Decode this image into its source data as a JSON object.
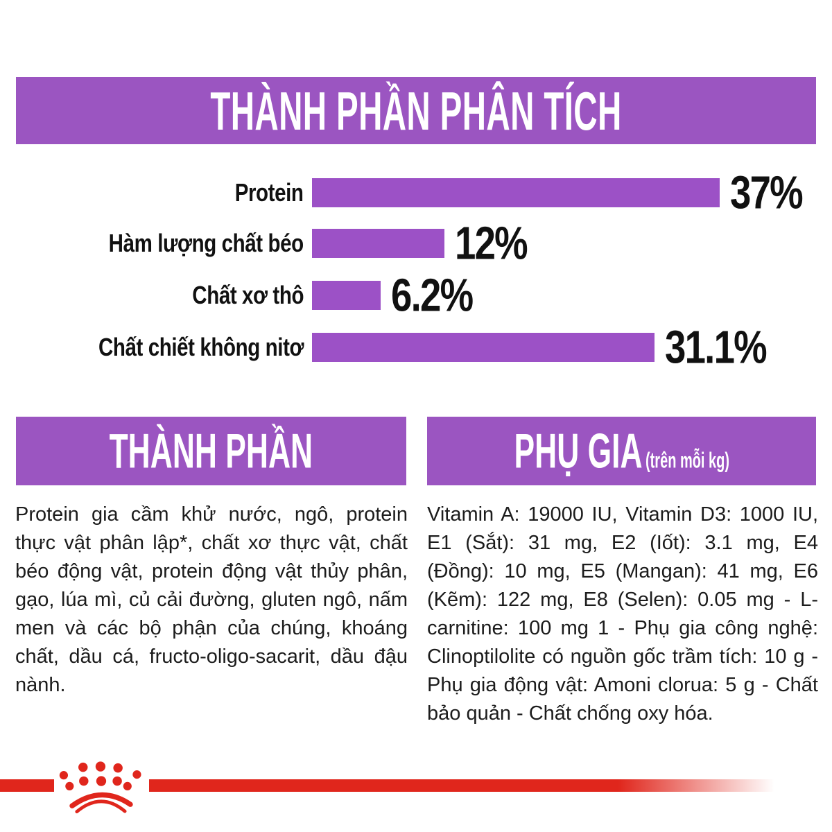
{
  "colors": {
    "banner_purple": "#9B55C1",
    "bar_purple": "#9C51C6",
    "brand_red": "#E0261C",
    "text_black": "#1C1C1C",
    "banner_text_white": "#FFFFFF",
    "background": "#FFFFFF"
  },
  "analysis": {
    "title": "THÀNH PHẦN PHÂN TÍCH"
  },
  "chart_data": {
    "type": "bar",
    "orientation": "horizontal",
    "title": "THÀNH PHẦN PHÂN TÍCH",
    "categories": [
      "Protein",
      "Hàm lượng chất béo",
      "Chất xơ thô",
      "Chất chiết không nitơ"
    ],
    "values": [
      37,
      12,
      6.2,
      31.1
    ],
    "value_labels": [
      "37%",
      "12%",
      "6.2%",
      "31.1%"
    ],
    "unit": "%",
    "xlim": [
      0,
      40
    ],
    "grid": false,
    "bar_color": "#9C51C6",
    "value_label_position": "right-of-bar"
  },
  "ingredients": {
    "title": "THÀNH PHẦN",
    "body": "Protein gia cầm khử nước, ngô, protein thực vật phân lập*, chất xơ thực vật, chất béo động vật, protein động vật thủy phân, gạo, lúa mì, củ cải đường, gluten ngô, nấm men và các bộ phận của chúng, khoáng chất, dầu cá, fructo-oligo-sacarit, dầu đậu nành."
  },
  "additives": {
    "title": "PHỤ GIA",
    "title_suffix": "(trên mỗi kg)",
    "body": "Vitamin A: 19000 IU, Vitamin D3: 1000 IU, E1 (Sắt): 31 mg, E2 (Iốt): 3.1 mg, E4 (Đồng): 10 mg, E5 (Mangan): 41 mg, E6 (Kẽm): 122 mg, E8 (Selen): 0.05 mg - L-carnitine: 100 mg 1  - Phụ gia công nghệ: Clinoptilolite có nguồn gốc trầm tích: 10 g - Phụ gia động vật: Amoni clorua: 5 g - Chất bảo quản - Chất chống oxy hóa."
  },
  "footer": {
    "logo": "royal-canin-crown"
  }
}
